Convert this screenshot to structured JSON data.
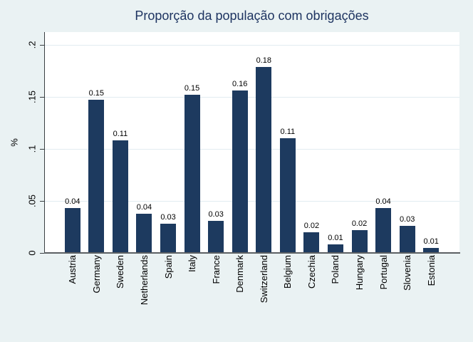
{
  "figure": {
    "background": "#eaf2f3",
    "plot_background": "#ffffff",
    "bar_color": "#1d3a5f",
    "grid_color": "#e2ecf1",
    "title_color": "#1e3461"
  },
  "chart_data": {
    "type": "bar",
    "title": "Proporção da população com obrigações",
    "xlabel": "",
    "ylabel": "%",
    "categories": [
      "Austria",
      "Germany",
      "Sweden",
      "Netherlands",
      "Spain",
      "Italy",
      "France",
      "Denmark",
      "Switzerland",
      "Belgium",
      "Czechia",
      "Poland",
      "Hungary",
      "Portugal",
      "Slovenia",
      "Estonia"
    ],
    "values": [
      0.043,
      0.147,
      0.108,
      0.038,
      0.028,
      0.152,
      0.031,
      0.156,
      0.179,
      0.11,
      0.02,
      0.008,
      0.022,
      0.043,
      0.026,
      0.005
    ],
    "bar_labels": [
      "0.04",
      "0.15",
      "0.11",
      "0.04",
      "0.03",
      "0.15",
      "0.03",
      "0.16",
      "0.18",
      "0.11",
      "0.02",
      "0.01",
      "0.02",
      "0.04",
      "0.03",
      "0.01"
    ],
    "ylim": [
      0,
      0.2
    ],
    "yticks": [
      {
        "value": 0,
        "label": "0"
      },
      {
        "value": 0.05,
        "label": ".05"
      },
      {
        "value": 0.1,
        "label": ".1"
      },
      {
        "value": 0.15,
        "label": ".15"
      },
      {
        "value": 0.2,
        "label": ".2"
      }
    ],
    "grid": true,
    "legend_position": "none"
  }
}
